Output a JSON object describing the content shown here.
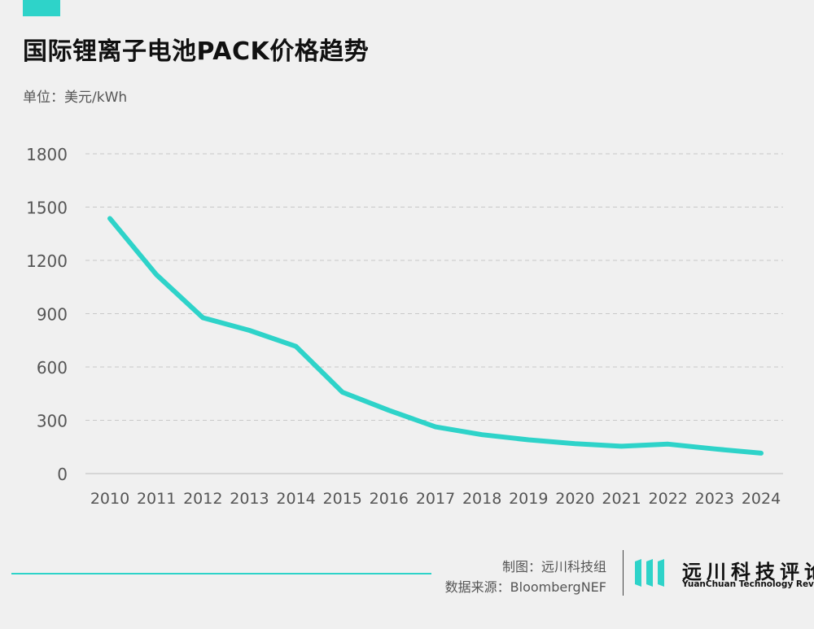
{
  "header": {
    "title": "国际锂离子电池PACK价格趋势",
    "unit": "单位：美元/kWh"
  },
  "colors": {
    "accent": "#2ed3c9",
    "grid": "#c8c8c8",
    "tick_text": "#555555"
  },
  "chart_data": {
    "type": "line",
    "title": "国际锂离子电池PACK价格趋势",
    "ylabel": "单位：美元/kWh",
    "xlabel": "",
    "categories": [
      "2010",
      "2011",
      "2012",
      "2013",
      "2014",
      "2015",
      "2016",
      "2017",
      "2018",
      "2019",
      "2020",
      "2021",
      "2022",
      "2023",
      "2024"
    ],
    "series": [
      {
        "name": "PACK价格",
        "values": [
          1436,
          1120,
          877,
          806,
          716,
          458,
          356,
          263,
          219,
          190,
          168,
          154,
          166,
          139,
          115
        ]
      }
    ],
    "yticks": [
      0,
      300,
      600,
      900,
      1200,
      1500,
      1800
    ],
    "ylim": [
      0,
      1800
    ],
    "grid": true,
    "legend": "none"
  },
  "footer": {
    "credit_maker": "制图：远川科技组",
    "credit_source": "数据来源：BloombergNEF",
    "brand_cn": "远川科技评论",
    "brand_en": "YuanChuan Technology Review",
    "logo_icon": "yuanchuan-logo-icon"
  }
}
